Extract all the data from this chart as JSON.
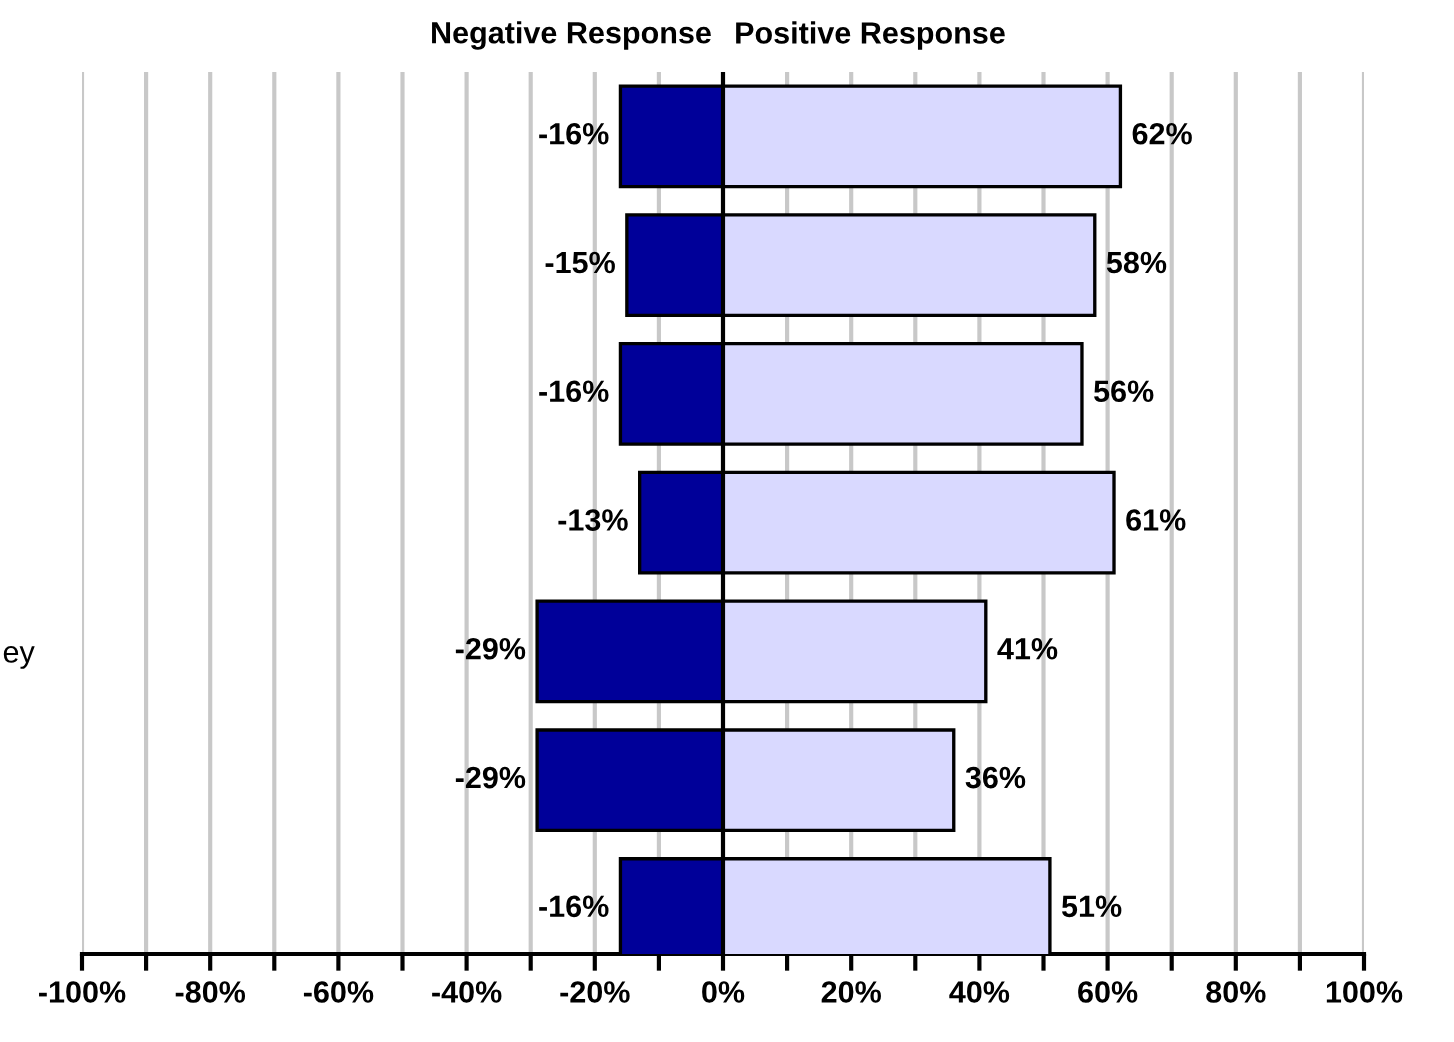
{
  "chart_data": {
    "type": "bar",
    "orientation": "horizontal",
    "stacked": true,
    "categories": [
      null,
      null,
      null,
      null,
      "ey",
      null,
      null
    ],
    "series": [
      {
        "name": "Negative Response",
        "color": "#000099",
        "values": [
          -16,
          -15,
          -16,
          -13,
          -29,
          -29,
          -16
        ],
        "value_labels": [
          "-16%",
          "-15%",
          "-16%",
          "-13%",
          "-29%",
          "-29%",
          "-16%"
        ]
      },
      {
        "name": "Positive Response",
        "color": "#d9d9ff",
        "values": [
          62,
          58,
          56,
          61,
          41,
          36,
          51
        ],
        "value_labels": [
          "62%",
          "58%",
          "56%",
          "61%",
          "41%",
          "36%",
          "51%"
        ]
      }
    ],
    "xlim": [
      -100,
      100
    ],
    "xticks": [
      {
        "value": -100,
        "label": "-100%"
      },
      {
        "value": -90,
        "label": null
      },
      {
        "value": -80,
        "label": "-80%"
      },
      {
        "value": -70,
        "label": null
      },
      {
        "value": -60,
        "label": "-60%"
      },
      {
        "value": -50,
        "label": null
      },
      {
        "value": -40,
        "label": "-40%"
      },
      {
        "value": -30,
        "label": null
      },
      {
        "value": -20,
        "label": "-20%"
      },
      {
        "value": -10,
        "label": null
      },
      {
        "value": 0,
        "label": "0%"
      },
      {
        "value": 10,
        "label": null
      },
      {
        "value": 20,
        "label": "20%"
      },
      {
        "value": 30,
        "label": null
      },
      {
        "value": 40,
        "label": "40%"
      },
      {
        "value": 50,
        "label": null
      },
      {
        "value": 60,
        "label": "60%"
      },
      {
        "value": 70,
        "label": null
      },
      {
        "value": 80,
        "label": "80%"
      },
      {
        "value": 90,
        "label": null
      },
      {
        "value": 100,
        "label": "100%"
      }
    ],
    "ref_lines": [
      {
        "axis": "x",
        "value": 0,
        "color": "#000000"
      }
    ],
    "grid": "x",
    "legend": false
  }
}
